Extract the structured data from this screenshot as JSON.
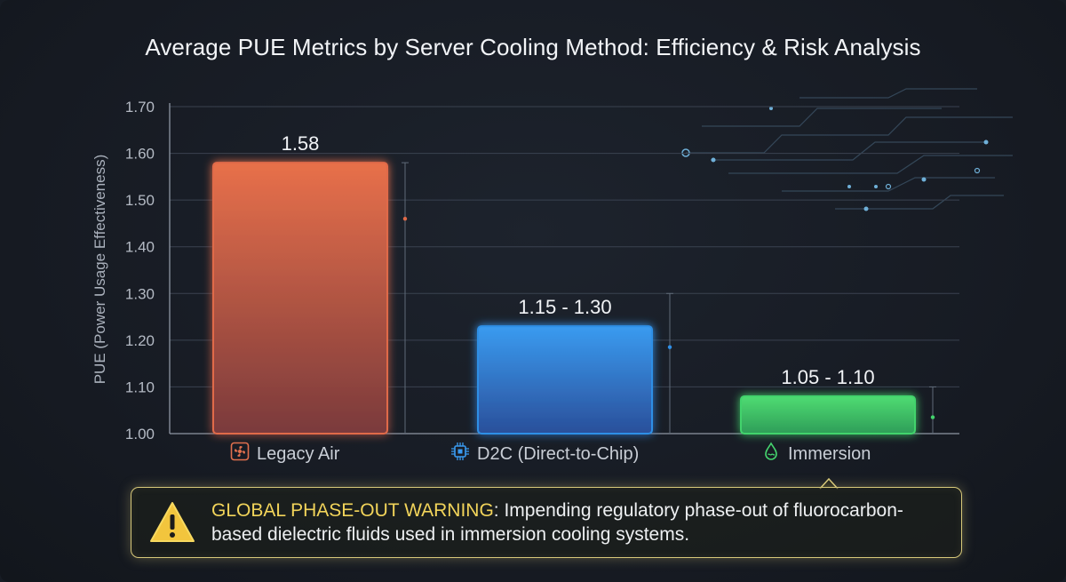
{
  "chart_data": {
    "type": "bar",
    "title": "Average PUE Metrics by Server Cooling Method: Efficiency & Risk Analysis",
    "ylabel": "PUE (Power Usage Effectiveness)",
    "ylim": [
      1.0,
      1.7
    ],
    "yticks": [
      "1.00",
      "1.10",
      "1.20",
      "1.30",
      "1.40",
      "1.50",
      "1.60",
      "1.70"
    ],
    "grid": true,
    "categories": [
      "Legacy Air",
      "D2C (Direct-to-Chip)",
      "Immersion"
    ],
    "values": [
      1.58,
      1.23,
      1.08
    ],
    "ranges": [
      [
        1.58,
        1.58
      ],
      [
        1.15,
        1.3
      ],
      [
        1.05,
        1.1
      ]
    ],
    "data_labels": [
      "1.58",
      "1.15 - 1.30",
      "1.05 - 1.10"
    ],
    "colors": [
      "#e06a48",
      "#2f8fe6",
      "#43d36c"
    ]
  },
  "icons": [
    "fan-icon",
    "chip-icon",
    "water-drop-icon"
  ],
  "warning": {
    "heading": "GLOBAL PHASE-OUT WARNING",
    "text": ": Impending regulatory phase-out of fluorocarbon-based dielectric fluids used in immersion cooling systems.",
    "color": "#f2d45a"
  }
}
